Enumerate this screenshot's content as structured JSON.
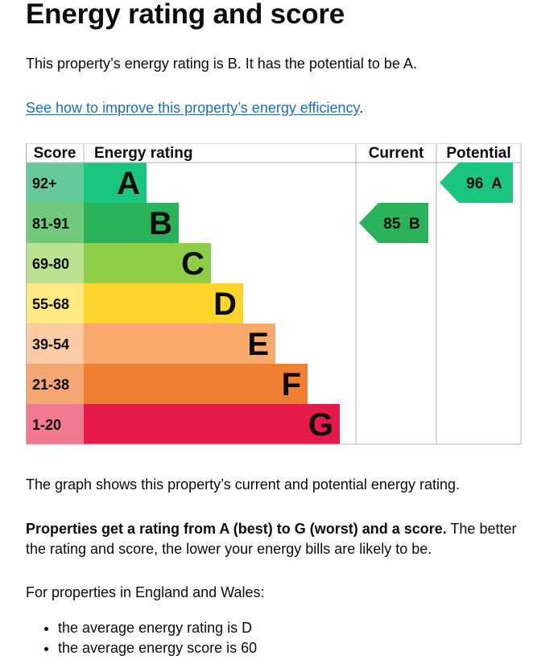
{
  "heading": "Energy rating and score",
  "intro": "This property’s energy rating is B. It has the potential to be A.",
  "improve_link": "See how to improve this property’s energy efficiency",
  "improve_link_suffix": ".",
  "chart_data": {
    "type": "table",
    "headers": {
      "score": "Score",
      "rating": "Energy rating",
      "current": "Current",
      "potential": "Potential"
    },
    "bands": [
      {
        "band": "A",
        "range": "92+",
        "color": "#19c57f",
        "score_bg": "#66c99a"
      },
      {
        "band": "B",
        "range": "81-91",
        "color": "#2ab35a",
        "score_bg": "#71c97c"
      },
      {
        "band": "C",
        "range": "69-80",
        "color": "#8dce46",
        "score_bg": "#b8e08e"
      },
      {
        "band": "D",
        "range": "55-68",
        "color": "#ffd52b",
        "score_bg": "#fde882"
      },
      {
        "band": "E",
        "range": "39-54",
        "color": "#f8a96b",
        "score_bg": "#fbcba5"
      },
      {
        "band": "F",
        "range": "21-38",
        "color": "#ef8032",
        "score_bg": "#f4a772"
      },
      {
        "band": "G",
        "range": "1-20",
        "color": "#e51a4b",
        "score_bg": "#f07990"
      }
    ],
    "current": {
      "score": 85,
      "band": "B",
      "label": "85  B",
      "color": "#2ab35a"
    },
    "potential": {
      "score": 96,
      "band": "A",
      "label": "96  A",
      "color": "#19c57f"
    }
  },
  "graph_note": "The graph shows this property’s current and potential energy rating.",
  "ratings_bold": "Properties get a rating from A (best) to G (worst) and a score.",
  "ratings_rest": " The better the rating and score, the lower your energy bills are likely to be.",
  "england_wales": "For properties in England and Wales:",
  "bullets": [
    "the average energy rating is D",
    "the average energy score is 60"
  ]
}
